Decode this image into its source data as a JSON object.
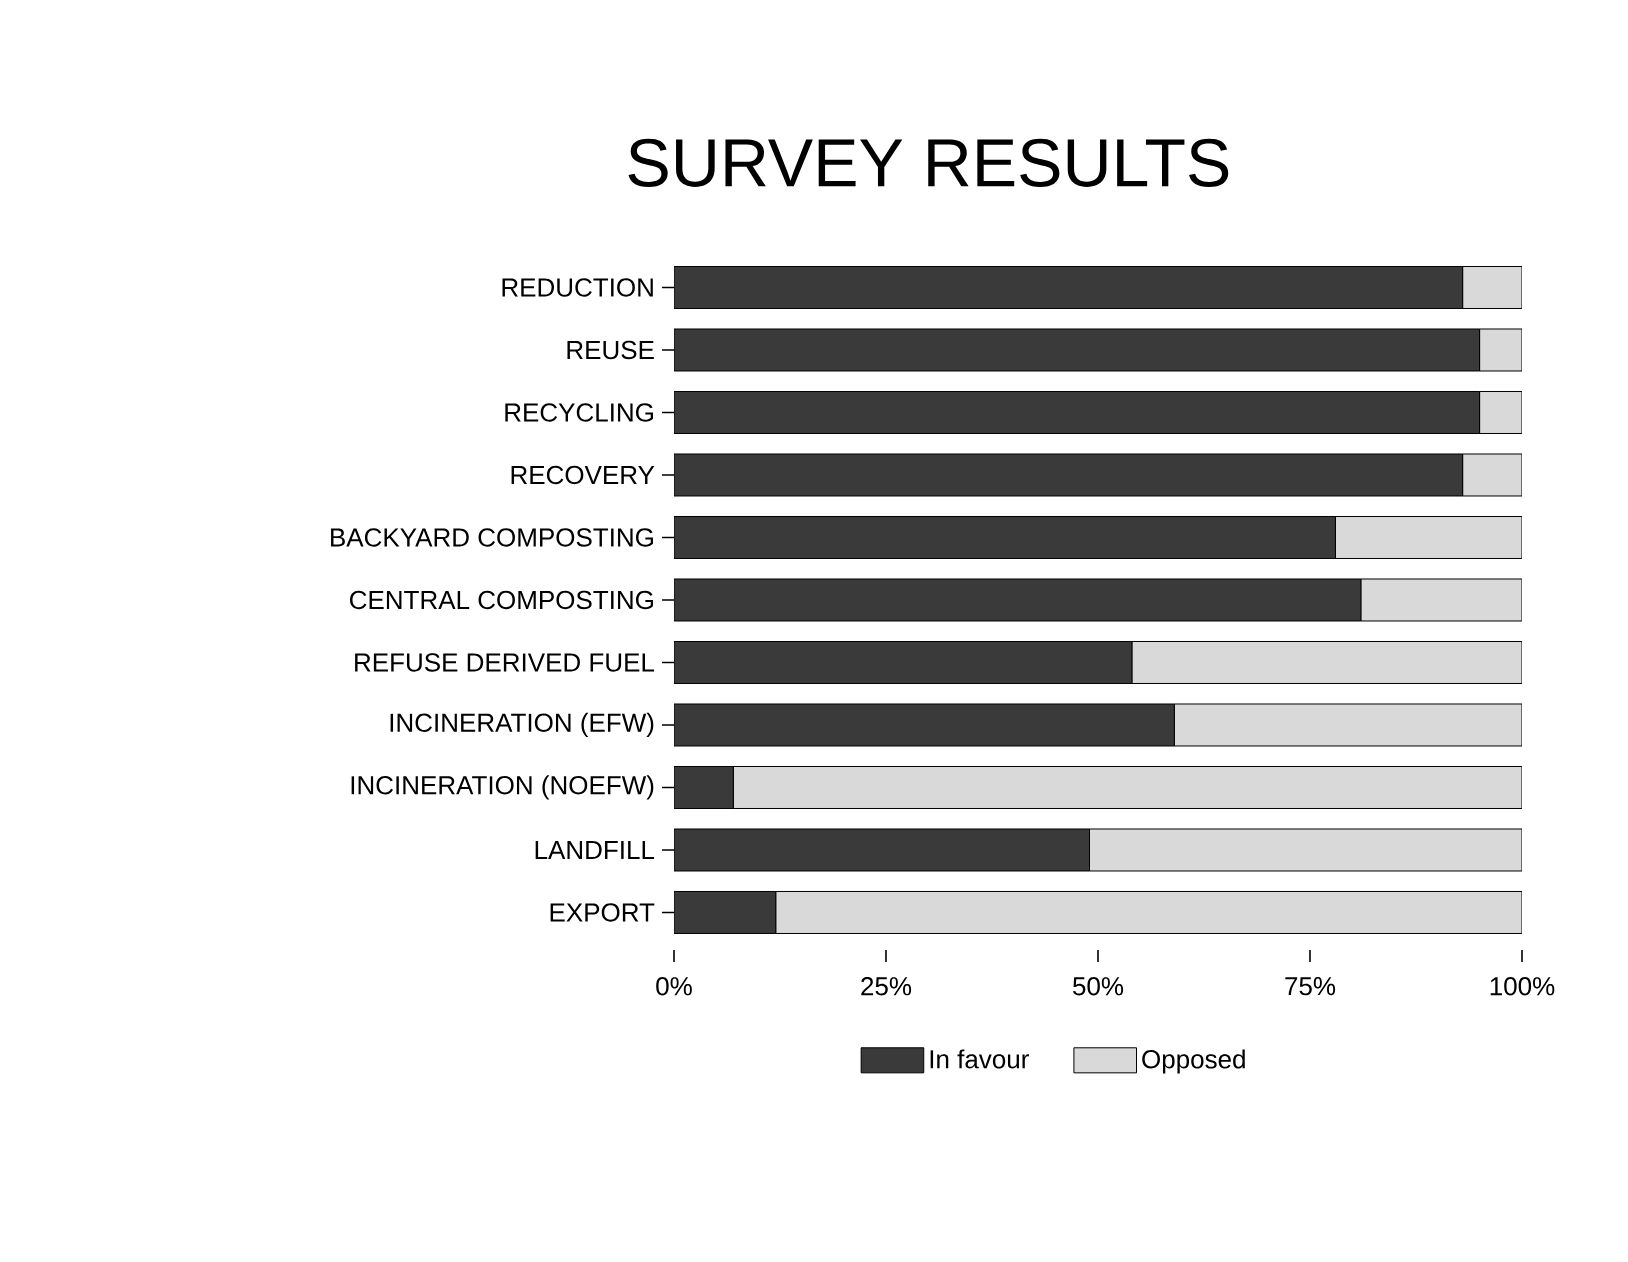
{
  "chart_data": {
    "type": "bar",
    "orientation": "horizontal",
    "stacked": true,
    "title": "SURVEY RESULTS",
    "categories": [
      "REDUCTION",
      "REUSE",
      "RECYCLING",
      "RECOVERY",
      "BACKYARD COMPOSTING",
      "CENTRAL COMPOSTING",
      "REFUSE DERIVED FUEL",
      "INCINERATION (EFW)",
      "INCINERATION (NOEFW)",
      "LANDFILL",
      "EXPORT"
    ],
    "series": [
      {
        "name": "In favour",
        "color": "#3a3a3a",
        "values": [
          93,
          95,
          95,
          93,
          78,
          81,
          54,
          59,
          7,
          49,
          12
        ]
      },
      {
        "name": "Opposed",
        "color": "#d9d9d9",
        "values": [
          7,
          5,
          5,
          7,
          22,
          19,
          46,
          41,
          93,
          51,
          88
        ]
      }
    ],
    "xlim": [
      0,
      100
    ],
    "xticks": [
      {
        "value": 0,
        "label": "0%"
      },
      {
        "value": 25,
        "label": "25%"
      },
      {
        "value": 50,
        "label": "50%"
      },
      {
        "value": 75,
        "label": "75%"
      },
      {
        "value": 100,
        "label": "100%"
      }
    ],
    "legend": "bottom",
    "grid": false
  }
}
